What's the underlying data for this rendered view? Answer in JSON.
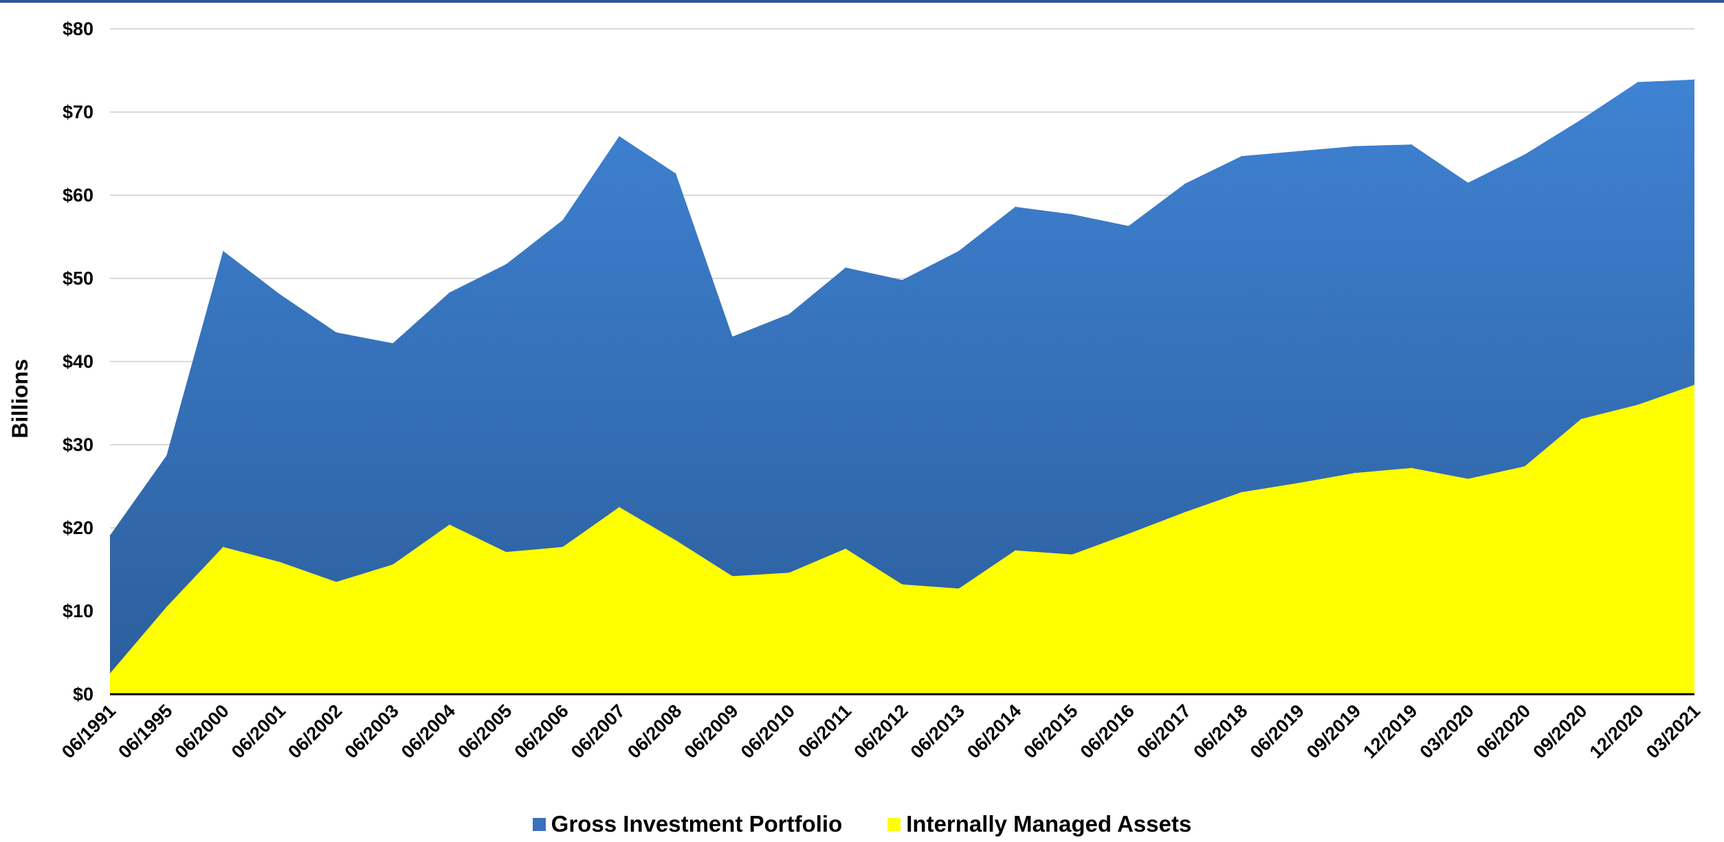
{
  "chart_data": {
    "type": "area",
    "stacked": false,
    "title": "",
    "xlabel": "",
    "ylabel": "Billions",
    "ylim": [
      0,
      80
    ],
    "yticks": [
      "$0",
      "$10",
      "$20",
      "$30",
      "$40",
      "$50",
      "$60",
      "$70",
      "$80"
    ],
    "grid": true,
    "legend_position": "bottom",
    "categories": [
      "06/1991",
      "06/1995",
      "06/2000",
      "06/2001",
      "06/2002",
      "06/2003",
      "06/2004",
      "06/2005",
      "06/2006",
      "06/2007",
      "06/2008",
      "06/2009",
      "06/2010",
      "06/2011",
      "06/2012",
      "06/2013",
      "06/2014",
      "06/2015",
      "06/2016",
      "06/2017",
      "06/2018",
      "06/2019",
      "09/2019",
      "12/2019",
      "03/2020",
      "06/2020",
      "09/2020",
      "12/2020",
      "03/2021"
    ],
    "series": [
      {
        "name": "Gross Investment Portfolio",
        "color": "#3a70c0",
        "values": [
          19.1,
          28.7,
          53.3,
          48.1,
          43.5,
          42.2,
          48.3,
          51.7,
          57.0,
          67.1,
          62.6,
          43.0,
          45.7,
          51.3,
          49.8,
          53.3,
          58.6,
          57.7,
          56.3,
          61.4,
          64.7,
          65.3,
          65.9,
          66.1,
          61.5,
          64.9,
          69.1,
          73.6,
          73.9
        ]
      },
      {
        "name": "Internally Managed Assets",
        "color": "#ffff00",
        "values": [
          2.5,
          10.5,
          17.7,
          15.9,
          13.5,
          15.6,
          20.4,
          17.1,
          17.7,
          22.5,
          18.5,
          14.2,
          14.6,
          17.5,
          13.2,
          12.7,
          17.3,
          16.8,
          19.3,
          21.9,
          24.3,
          25.4,
          26.6,
          27.2,
          25.9,
          27.4,
          33.1,
          34.8,
          37.2
        ]
      }
    ]
  }
}
